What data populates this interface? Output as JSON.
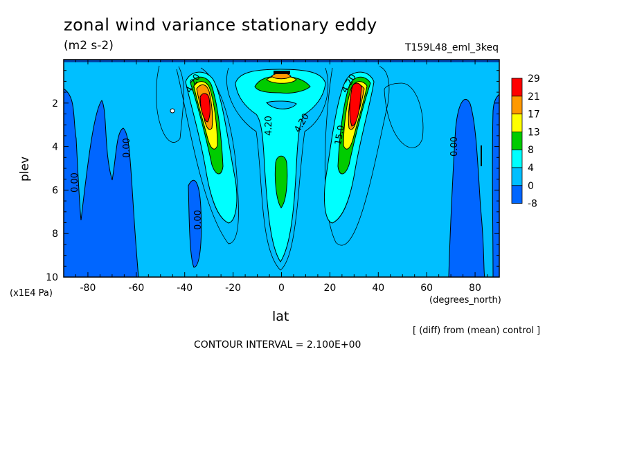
{
  "chart_data": {
    "type": "heatmap",
    "title": "zonal wind variance stationary eddy",
    "units": "(m2 s-2)",
    "run_label": "T159L48_eml_3keq",
    "xlabel": "lat",
    "x_units": "(degrees_north)",
    "ylabel": "plev",
    "y_scale_label": "(x1E4 Pa)",
    "x_range": [
      -90,
      90
    ],
    "y_range": [
      10,
      0
    ],
    "x_ticks": [
      "-80",
      "-60",
      "-40",
      "-20",
      "0",
      "20",
      "40",
      "60",
      "80"
    ],
    "y_ticks": [
      "2",
      "4",
      "6",
      "8",
      "10"
    ],
    "colorbar": {
      "labels": [
        "29",
        "21",
        "17",
        "13",
        "8",
        "4",
        "0",
        "-8"
      ],
      "colors": [
        "#ff0000",
        "#ff9900",
        "#ffff00",
        "#00cc00",
        "#00ffff",
        "#00bfff",
        "#0066ff"
      ]
    },
    "contour_labels": [
      "4.20",
      "4.20",
      "4.20",
      "4.20",
      "0.00",
      "0.00",
      "0.00",
      "0.00",
      "15.0"
    ],
    "features": [
      {
        "name": "SH jet maximum",
        "lat": -31,
        "plev": 2.5,
        "value": 29
      },
      {
        "name": "NH jet maximum",
        "lat": 31,
        "plev": 2.5,
        "value": 29
      },
      {
        "name": "equatorial upper maximum",
        "lat": 0,
        "plev": 0.8,
        "value": 21
      },
      {
        "name": "equatorial column",
        "lat": 0,
        "plev": 5.5,
        "value": 8
      }
    ],
    "footer_note": "[ (diff) from (mean) control ]",
    "contour_interval": "CONTOUR INTERVAL = 2.100E+00"
  }
}
